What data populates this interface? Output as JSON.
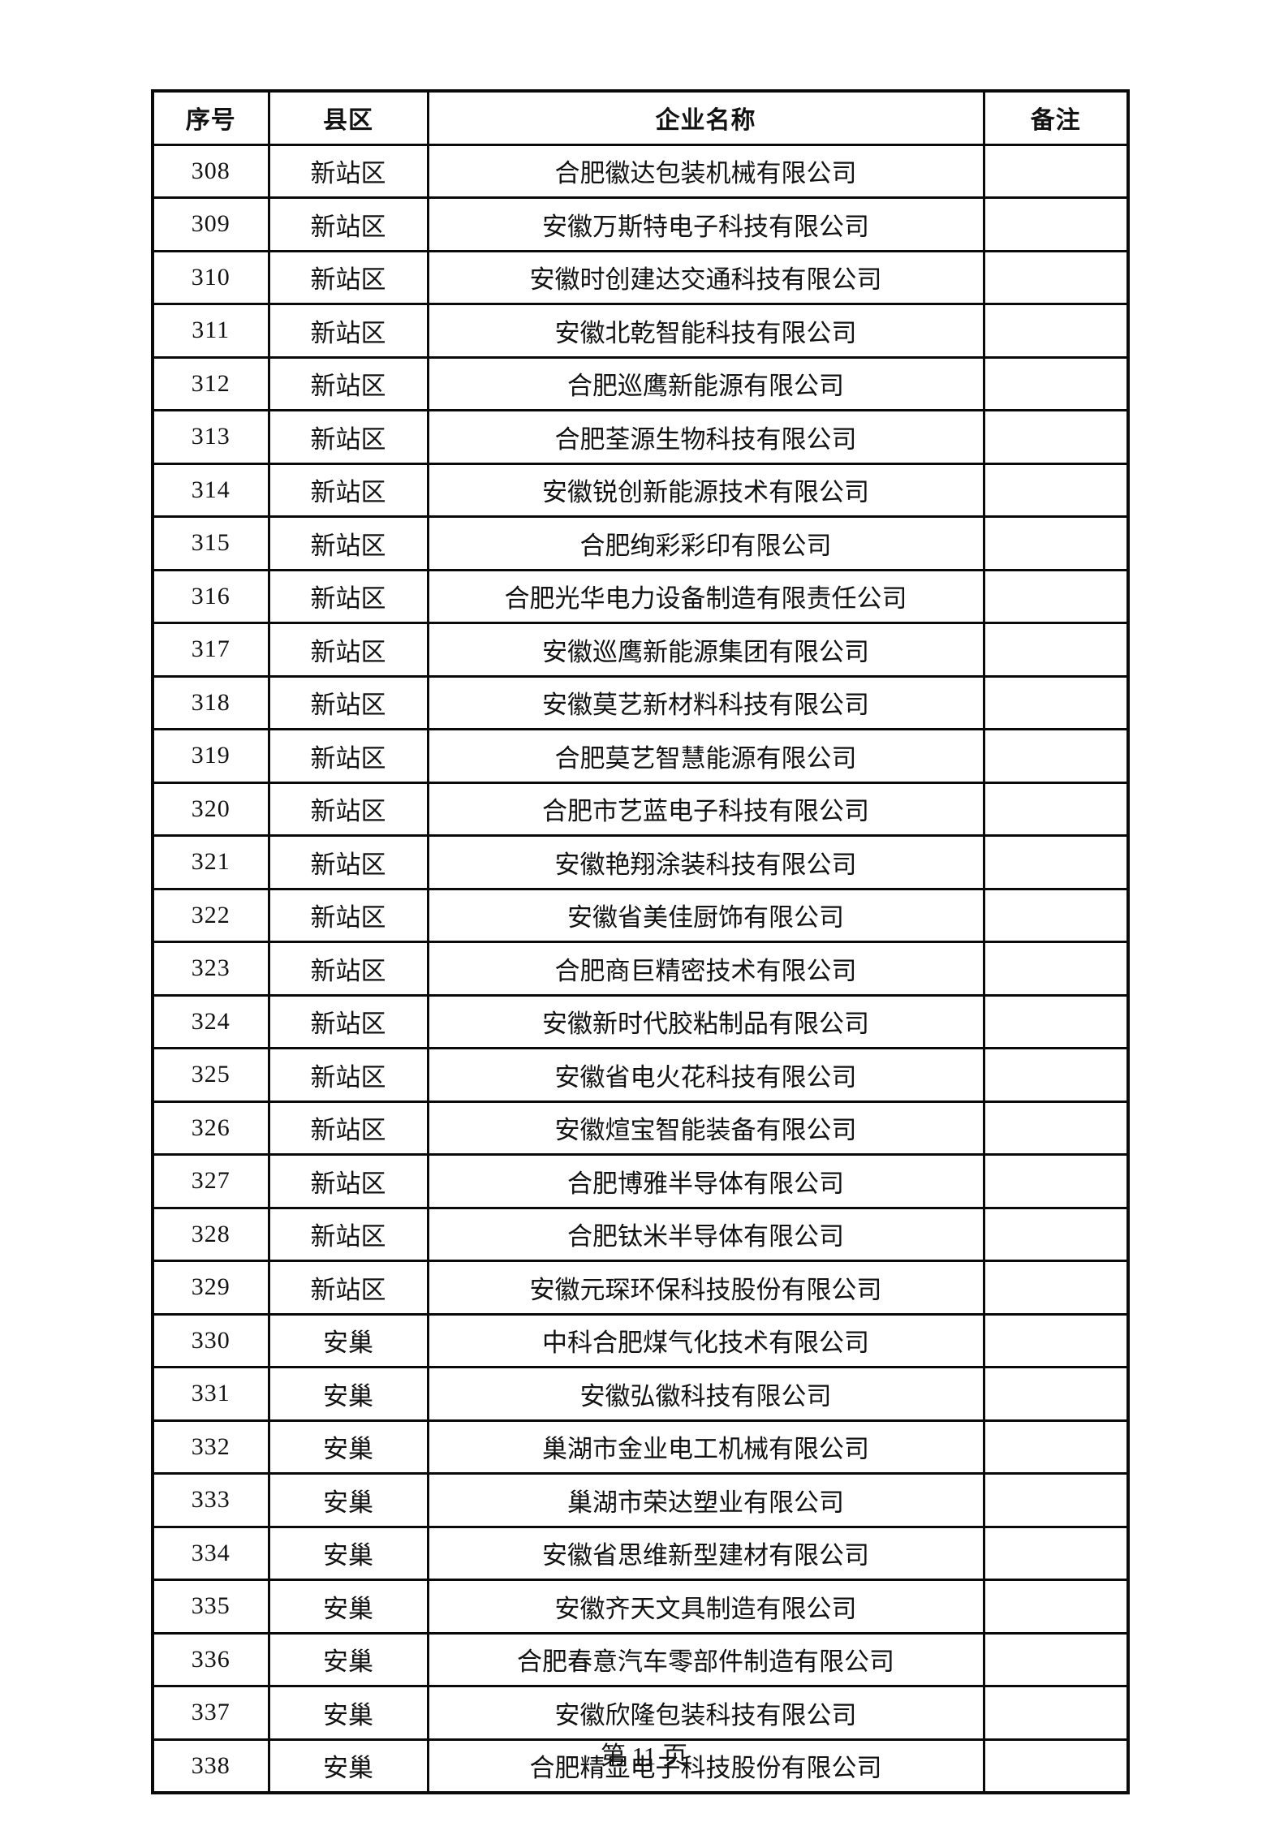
{
  "table": {
    "headers": [
      "序号",
      "县区",
      "企业名称",
      "备注"
    ],
    "rows": [
      {
        "no": "308",
        "district": "新站区",
        "company": "合肥徽达包装机械有限公司",
        "remark": ""
      },
      {
        "no": "309",
        "district": "新站区",
        "company": "安徽万斯特电子科技有限公司",
        "remark": ""
      },
      {
        "no": "310",
        "district": "新站区",
        "company": "安徽时创建达交通科技有限公司",
        "remark": ""
      },
      {
        "no": "311",
        "district": "新站区",
        "company": "安徽北乾智能科技有限公司",
        "remark": ""
      },
      {
        "no": "312",
        "district": "新站区",
        "company": "合肥巡鹰新能源有限公司",
        "remark": ""
      },
      {
        "no": "313",
        "district": "新站区",
        "company": "合肥荃源生物科技有限公司",
        "remark": ""
      },
      {
        "no": "314",
        "district": "新站区",
        "company": "安徽锐创新能源技术有限公司",
        "remark": ""
      },
      {
        "no": "315",
        "district": "新站区",
        "company": "合肥绚彩彩印有限公司",
        "remark": ""
      },
      {
        "no": "316",
        "district": "新站区",
        "company": "合肥光华电力设备制造有限责任公司",
        "remark": ""
      },
      {
        "no": "317",
        "district": "新站区",
        "company": "安徽巡鹰新能源集团有限公司",
        "remark": ""
      },
      {
        "no": "318",
        "district": "新站区",
        "company": "安徽莫艺新材料科技有限公司",
        "remark": ""
      },
      {
        "no": "319",
        "district": "新站区",
        "company": "合肥莫艺智慧能源有限公司",
        "remark": ""
      },
      {
        "no": "320",
        "district": "新站区",
        "company": "合肥市艺蓝电子科技有限公司",
        "remark": ""
      },
      {
        "no": "321",
        "district": "新站区",
        "company": "安徽艳翔涂装科技有限公司",
        "remark": ""
      },
      {
        "no": "322",
        "district": "新站区",
        "company": "安徽省美佳厨饰有限公司",
        "remark": ""
      },
      {
        "no": "323",
        "district": "新站区",
        "company": "合肥商巨精密技术有限公司",
        "remark": ""
      },
      {
        "no": "324",
        "district": "新站区",
        "company": "安徽新时代胶粘制品有限公司",
        "remark": ""
      },
      {
        "no": "325",
        "district": "新站区",
        "company": "安徽省电火花科技有限公司",
        "remark": ""
      },
      {
        "no": "326",
        "district": "新站区",
        "company": "安徽煊宝智能装备有限公司",
        "remark": ""
      },
      {
        "no": "327",
        "district": "新站区",
        "company": "合肥博雅半导体有限公司",
        "remark": ""
      },
      {
        "no": "328",
        "district": "新站区",
        "company": "合肥钛米半导体有限公司",
        "remark": ""
      },
      {
        "no": "329",
        "district": "新站区",
        "company": "安徽元琛环保科技股份有限公司",
        "remark": ""
      },
      {
        "no": "330",
        "district": "安巢",
        "company": "中科合肥煤气化技术有限公司",
        "remark": ""
      },
      {
        "no": "331",
        "district": "安巢",
        "company": "安徽弘徽科技有限公司",
        "remark": ""
      },
      {
        "no": "332",
        "district": "安巢",
        "company": "巢湖市金业电工机械有限公司",
        "remark": ""
      },
      {
        "no": "333",
        "district": "安巢",
        "company": "巢湖市荣达塑业有限公司",
        "remark": ""
      },
      {
        "no": "334",
        "district": "安巢",
        "company": "安徽省思维新型建材有限公司",
        "remark": ""
      },
      {
        "no": "335",
        "district": "安巢",
        "company": "安徽齐天文具制造有限公司",
        "remark": ""
      },
      {
        "no": "336",
        "district": "安巢",
        "company": "合肥春意汽车零部件制造有限公司",
        "remark": ""
      },
      {
        "no": "337",
        "district": "安巢",
        "company": "安徽欣隆包装科技有限公司",
        "remark": ""
      },
      {
        "no": "338",
        "district": "安巢",
        "company": "合肥精显电子科技股份有限公司",
        "remark": ""
      }
    ]
  },
  "footer": {
    "page_label": "第 11 页"
  }
}
